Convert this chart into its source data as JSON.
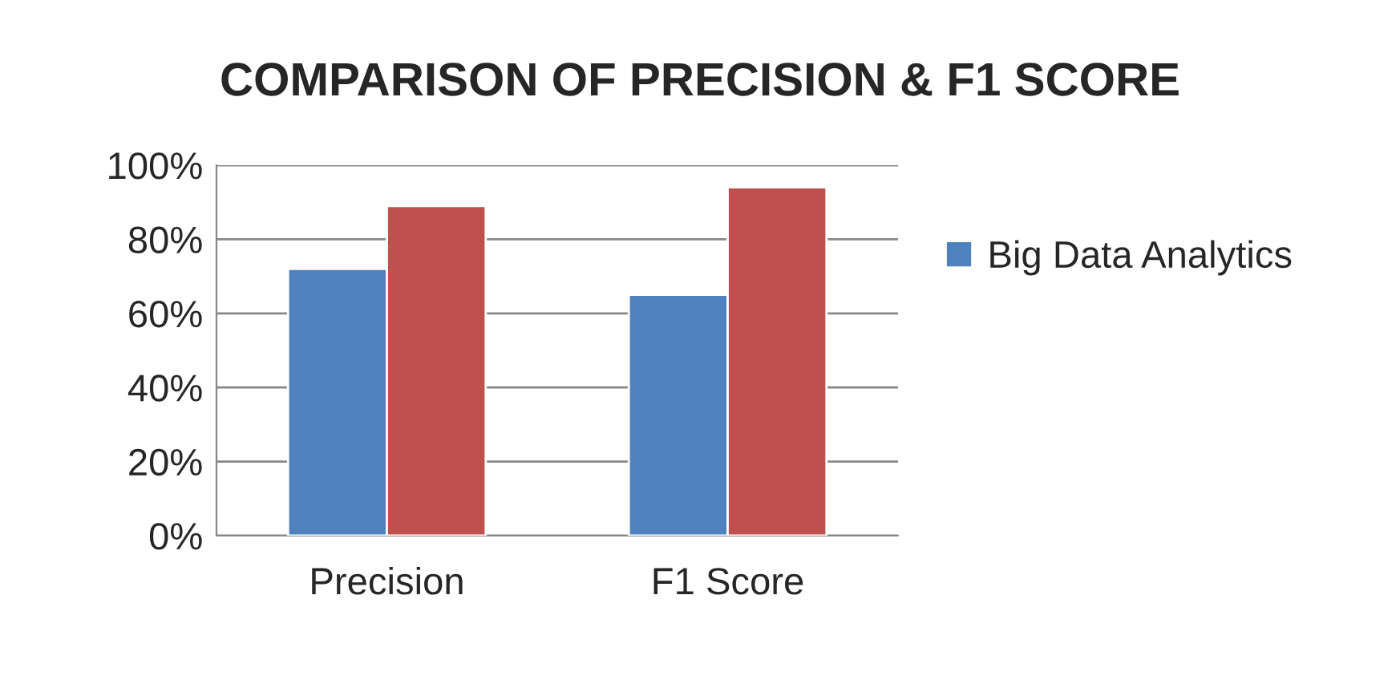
{
  "chart_data": {
    "type": "bar",
    "title": "COMPARISON OF PRECISION & F1 SCORE",
    "categories": [
      "Precision",
      "F1 Score"
    ],
    "series": [
      {
        "name": "Big Data Analytics",
        "color": "#4f81bd",
        "values": [
          72,
          65
        ]
      },
      {
        "color": "#c0504d",
        "values": [
          89,
          94
        ]
      }
    ],
    "ylim": [
      0,
      100
    ],
    "yticks": [
      {
        "value": 0,
        "label": "0%"
      },
      {
        "value": 20,
        "label": "20%"
      },
      {
        "value": 40,
        "label": "40%"
      },
      {
        "value": 60,
        "label": "60%"
      },
      {
        "value": 80,
        "label": "80%"
      },
      {
        "value": 100,
        "label": "100%"
      }
    ],
    "grid": "y",
    "legend": "right"
  }
}
